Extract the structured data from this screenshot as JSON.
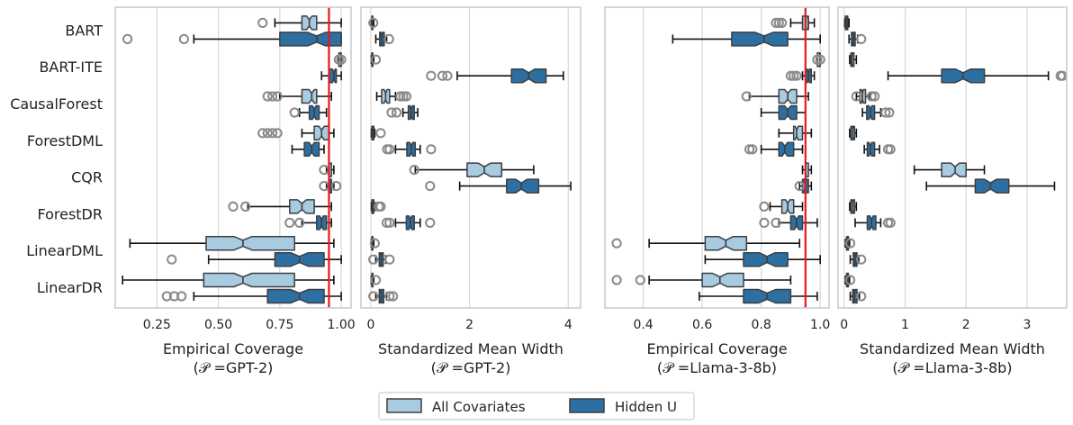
{
  "colors": {
    "all_covariates": "#a9cbe0",
    "hidden_u": "#2e6fa1",
    "box_edge": "#3a3f44",
    "target_line": "#e41a1c",
    "grid": "#d7d7d7",
    "panel_border": "#cccccc",
    "outlier_edge": "#8a8a8a"
  },
  "methods": [
    "BART",
    "BART-ITE",
    "CausalForest",
    "ForestDML",
    "CQR",
    "ForestDR",
    "LinearDML",
    "LinearDR"
  ],
  "legend": {
    "entries": [
      {
        "key": "all",
        "label": "All Covariates"
      },
      {
        "key": "hidden",
        "label": "Hidden U"
      }
    ]
  },
  "chart_data": [
    {
      "type": "boxplot",
      "xlabel_line1": "Empirical Coverage",
      "xlabel_line2": "(𝒫 =GPT-2)",
      "xlim": [
        0.08,
        1.04
      ],
      "xticks": [
        0.25,
        0.5,
        0.75,
        1.0
      ],
      "xtick_labels": [
        "0.25",
        "0.50",
        "0.75",
        "1.00"
      ],
      "target_line": 0.95,
      "series": [
        {
          "method": "BART",
          "group": "all",
          "whislo": 0.73,
          "q1": 0.84,
          "med": 0.87,
          "q3": 0.9,
          "whishi": 1.0,
          "fliers": [
            0.68
          ]
        },
        {
          "method": "BART",
          "group": "hidden",
          "whislo": 0.4,
          "q1": 0.75,
          "med": 0.9,
          "q3": 1.0,
          "whishi": 1.0,
          "fliers": [
            0.13,
            0.36
          ]
        },
        {
          "method": "BART-ITE",
          "group": "all",
          "whislo": 0.99,
          "q1": 0.99,
          "med": 1.0,
          "q3": 1.0,
          "whishi": 1.0,
          "fliers": [
            0.99,
            1.0
          ]
        },
        {
          "method": "BART-ITE",
          "group": "hidden",
          "whislo": 0.92,
          "q1": 0.95,
          "med": 0.97,
          "q3": 0.98,
          "whishi": 1.0,
          "fliers": []
        },
        {
          "method": "CausalForest",
          "group": "all",
          "whislo": 0.75,
          "q1": 0.84,
          "med": 0.88,
          "q3": 0.9,
          "whishi": 0.96,
          "fliers": [
            0.7,
            0.72,
            0.74
          ]
        },
        {
          "method": "CausalForest",
          "group": "hidden",
          "whislo": 0.83,
          "q1": 0.87,
          "med": 0.89,
          "q3": 0.91,
          "whishi": 0.94,
          "fliers": [
            0.81
          ]
        },
        {
          "method": "ForestDML",
          "group": "all",
          "whislo": 0.84,
          "q1": 0.89,
          "med": 0.92,
          "q3": 0.95,
          "whishi": 0.97,
          "fliers": [
            0.68,
            0.7,
            0.72,
            0.74
          ]
        },
        {
          "method": "ForestDML",
          "group": "hidden",
          "whislo": 0.8,
          "q1": 0.85,
          "med": 0.88,
          "q3": 0.91,
          "whishi": 0.93,
          "fliers": []
        },
        {
          "method": "CQR",
          "group": "all",
          "whislo": 0.94,
          "q1": 0.95,
          "med": 0.95,
          "q3": 0.96,
          "whishi": 0.97,
          "fliers": [
            0.93
          ]
        },
        {
          "method": "CQR",
          "group": "hidden",
          "whislo": 0.94,
          "q1": 0.95,
          "med": 0.96,
          "q3": 0.96,
          "whishi": 0.97,
          "fliers": [
            0.93,
            0.98
          ]
        },
        {
          "method": "ForestDR",
          "group": "all",
          "whislo": 0.62,
          "q1": 0.79,
          "med": 0.84,
          "q3": 0.89,
          "whishi": 0.96,
          "fliers": [
            0.56,
            0.61
          ]
        },
        {
          "method": "ForestDR",
          "group": "hidden",
          "whislo": 0.84,
          "q1": 0.9,
          "med": 0.92,
          "q3": 0.94,
          "whishi": 0.96,
          "fliers": [
            0.79,
            0.83
          ]
        },
        {
          "method": "LinearDML",
          "group": "all",
          "whislo": 0.14,
          "q1": 0.45,
          "med": 0.6,
          "q3": 0.81,
          "whishi": 0.97,
          "fliers": []
        },
        {
          "method": "LinearDML",
          "group": "hidden",
          "whislo": 0.46,
          "q1": 0.73,
          "med": 0.83,
          "q3": 0.93,
          "whishi": 1.0,
          "fliers": [
            0.31
          ]
        },
        {
          "method": "LinearDR",
          "group": "all",
          "whislo": 0.11,
          "q1": 0.44,
          "med": 0.6,
          "q3": 0.81,
          "whishi": 0.97,
          "fliers": []
        },
        {
          "method": "LinearDR",
          "group": "hidden",
          "whislo": 0.4,
          "q1": 0.7,
          "med": 0.83,
          "q3": 0.93,
          "whishi": 1.0,
          "fliers": [
            0.29,
            0.32,
            0.35
          ]
        }
      ]
    },
    {
      "type": "boxplot",
      "xlabel_line1": "Standardized Mean Width",
      "xlabel_line2": "(𝒫 =GPT-2)",
      "xlim": [
        -0.2,
        4.25
      ],
      "xticks": [
        0,
        2,
        4
      ],
      "xtick_labels": [
        "0",
        "2",
        "4"
      ],
      "series": [
        {
          "method": "BART",
          "group": "all",
          "whislo": 0.01,
          "q1": 0.02,
          "med": 0.03,
          "q3": 0.04,
          "whishi": 0.06,
          "fliers": [
            0.05
          ]
        },
        {
          "method": "BART",
          "group": "hidden",
          "whislo": 0.1,
          "q1": 0.18,
          "med": 0.22,
          "q3": 0.27,
          "whishi": 0.32,
          "fliers": [
            0.37
          ]
        },
        {
          "method": "BART-ITE",
          "group": "all",
          "whislo": 0.01,
          "q1": 0.02,
          "med": 0.03,
          "q3": 0.04,
          "whishi": 0.06,
          "fliers": [
            0.1
          ]
        },
        {
          "method": "BART-ITE",
          "group": "hidden",
          "whislo": 1.75,
          "q1": 2.85,
          "med": 3.2,
          "q3": 3.55,
          "whishi": 3.9,
          "fliers": [
            1.22,
            1.45,
            1.55
          ]
        },
        {
          "method": "CausalForest",
          "group": "all",
          "whislo": 0.12,
          "q1": 0.22,
          "med": 0.3,
          "q3": 0.38,
          "whishi": 0.5,
          "fliers": [
            0.6,
            0.66,
            0.72
          ]
        },
        {
          "method": "CausalForest",
          "group": "hidden",
          "whislo": 0.65,
          "q1": 0.76,
          "med": 0.82,
          "q3": 0.88,
          "whishi": 0.95,
          "fliers": [
            0.42,
            0.52
          ]
        },
        {
          "method": "ForestDML",
          "group": "all",
          "whislo": 0.01,
          "q1": 0.02,
          "med": 0.04,
          "q3": 0.06,
          "whishi": 0.08,
          "fliers": [
            0.2
          ]
        },
        {
          "method": "ForestDML",
          "group": "hidden",
          "whislo": 0.5,
          "q1": 0.73,
          "med": 0.82,
          "q3": 0.9,
          "whishi": 1.0,
          "fliers": [
            0.33,
            0.38,
            1.22
          ]
        },
        {
          "method": "CQR",
          "group": "all",
          "whislo": 0.9,
          "q1": 1.95,
          "med": 2.3,
          "q3": 2.65,
          "whishi": 3.3,
          "fliers": [
            0.88
          ]
        },
        {
          "method": "CQR",
          "group": "hidden",
          "whislo": 1.8,
          "q1": 2.75,
          "med": 3.05,
          "q3": 3.4,
          "whishi": 4.05,
          "fliers": [
            1.2
          ]
        },
        {
          "method": "ForestDR",
          "group": "all",
          "whislo": 0.01,
          "q1": 0.02,
          "med": 0.04,
          "q3": 0.06,
          "whishi": 0.09,
          "fliers": [
            0.16,
            0.2
          ]
        },
        {
          "method": "ForestDR",
          "group": "hidden",
          "whislo": 0.5,
          "q1": 0.72,
          "med": 0.8,
          "q3": 0.88,
          "whishi": 1.0,
          "fliers": [
            0.32,
            0.38,
            1.2
          ]
        },
        {
          "method": "LinearDML",
          "group": "all",
          "whislo": 0.01,
          "q1": 0.02,
          "med": 0.03,
          "q3": 0.04,
          "whishi": 0.06,
          "fliers": [
            0.08
          ]
        },
        {
          "method": "LinearDML",
          "group": "hidden",
          "whislo": 0.1,
          "q1": 0.17,
          "med": 0.21,
          "q3": 0.25,
          "whishi": 0.3,
          "fliers": [
            0.05,
            0.38
          ]
        },
        {
          "method": "LinearDR",
          "group": "all",
          "whislo": 0.01,
          "q1": 0.02,
          "med": 0.03,
          "q3": 0.04,
          "whishi": 0.06,
          "fliers": [
            0.1
          ]
        },
        {
          "method": "LinearDR",
          "group": "hidden",
          "whislo": 0.1,
          "q1": 0.17,
          "med": 0.21,
          "q3": 0.26,
          "whishi": 0.32,
          "fliers": [
            0.05,
            0.38,
            0.45
          ]
        }
      ]
    },
    {
      "type": "boxplot",
      "xlabel_line1": "Empirical Coverage",
      "xlabel_line2": "(𝒫 =Llama-3-8b)",
      "xlim": [
        0.27,
        1.03
      ],
      "xticks": [
        0.4,
        0.6,
        0.8,
        1.0
      ],
      "xtick_labels": [
        "0.4",
        "0.6",
        "0.8",
        "1.0"
      ],
      "target_line": 0.95,
      "series": [
        {
          "method": "BART",
          "group": "all",
          "whislo": 0.9,
          "q1": 0.94,
          "med": 0.96,
          "q3": 0.96,
          "whishi": 0.98,
          "fliers": [
            0.85,
            0.86,
            0.87
          ]
        },
        {
          "method": "BART",
          "group": "hidden",
          "whislo": 0.5,
          "q1": 0.7,
          "med": 0.81,
          "q3": 0.89,
          "whishi": 1.0,
          "fliers": []
        },
        {
          "method": "BART-ITE",
          "group": "all",
          "whislo": 0.99,
          "q1": 0.99,
          "med": 1.0,
          "q3": 1.0,
          "whishi": 1.0,
          "fliers": [
            0.99,
            1.0
          ]
        },
        {
          "method": "BART-ITE",
          "group": "hidden",
          "whislo": 0.94,
          "q1": 0.95,
          "med": 0.96,
          "q3": 0.97,
          "whishi": 0.98,
          "fliers": [
            0.9,
            0.91,
            0.92
          ]
        },
        {
          "method": "CausalForest",
          "group": "all",
          "whislo": 0.76,
          "q1": 0.86,
          "med": 0.89,
          "q3": 0.92,
          "whishi": 0.96,
          "fliers": [
            0.75
          ]
        },
        {
          "method": "CausalForest",
          "group": "hidden",
          "whislo": 0.8,
          "q1": 0.86,
          "med": 0.89,
          "q3": 0.92,
          "whishi": 0.95,
          "fliers": []
        },
        {
          "method": "ForestDML",
          "group": "all",
          "whislo": 0.86,
          "q1": 0.91,
          "med": 0.92,
          "q3": 0.94,
          "whishi": 0.97,
          "fliers": []
        },
        {
          "method": "ForestDML",
          "group": "hidden",
          "whislo": 0.8,
          "q1": 0.86,
          "med": 0.88,
          "q3": 0.91,
          "whishi": 0.94,
          "fliers": [
            0.76,
            0.77
          ]
        },
        {
          "method": "CQR",
          "group": "all",
          "whislo": 0.94,
          "q1": 0.95,
          "med": 0.95,
          "q3": 0.96,
          "whishi": 0.97,
          "fliers": []
        },
        {
          "method": "CQR",
          "group": "hidden",
          "whislo": 0.93,
          "q1": 0.94,
          "med": 0.95,
          "q3": 0.96,
          "whishi": 0.97,
          "fliers": [
            0.93
          ]
        },
        {
          "method": "ForestDR",
          "group": "all",
          "whislo": 0.83,
          "q1": 0.87,
          "med": 0.89,
          "q3": 0.91,
          "whishi": 0.94,
          "fliers": [
            0.81
          ]
        },
        {
          "method": "ForestDR",
          "group": "hidden",
          "whislo": 0.86,
          "q1": 0.9,
          "med": 0.92,
          "q3": 0.94,
          "whishi": 0.99,
          "fliers": [
            0.81,
            0.85
          ]
        },
        {
          "method": "LinearDML",
          "group": "all",
          "whislo": 0.42,
          "q1": 0.61,
          "med": 0.68,
          "q3": 0.75,
          "whishi": 0.93,
          "fliers": [
            0.31
          ]
        },
        {
          "method": "LinearDML",
          "group": "hidden",
          "whislo": 0.61,
          "q1": 0.74,
          "med": 0.82,
          "q3": 0.89,
          "whishi": 1.0,
          "fliers": []
        },
        {
          "method": "LinearDR",
          "group": "all",
          "whislo": 0.42,
          "q1": 0.6,
          "med": 0.66,
          "q3": 0.74,
          "whishi": 0.9,
          "fliers": [
            0.31,
            0.39
          ]
        },
        {
          "method": "LinearDR",
          "group": "hidden",
          "whislo": 0.59,
          "q1": 0.74,
          "med": 0.82,
          "q3": 0.9,
          "whishi": 0.99,
          "fliers": []
        }
      ]
    },
    {
      "type": "boxplot",
      "xlabel_line1": "Standardized Mean Width",
      "xlabel_line2": "(𝒫 =Llama-3-8b)",
      "xlim": [
        -0.1,
        3.65
      ],
      "xticks": [
        0,
        1,
        2,
        3
      ],
      "xtick_labels": [
        "0",
        "1",
        "2",
        "3"
      ],
      "series": [
        {
          "method": "BART",
          "group": "all",
          "whislo": 0.01,
          "q1": 0.02,
          "med": 0.04,
          "q3": 0.06,
          "whishi": 0.08,
          "fliers": []
        },
        {
          "method": "BART",
          "group": "hidden",
          "whislo": 0.08,
          "q1": 0.12,
          "med": 0.15,
          "q3": 0.18,
          "whishi": 0.22,
          "fliers": [
            0.28
          ]
        },
        {
          "method": "BART-ITE",
          "group": "all",
          "whislo": 0.09,
          "q1": 0.11,
          "med": 0.13,
          "q3": 0.16,
          "whishi": 0.2,
          "fliers": []
        },
        {
          "method": "BART-ITE",
          "group": "hidden",
          "whislo": 0.72,
          "q1": 1.6,
          "med": 1.95,
          "q3": 2.3,
          "whishi": 3.35,
          "fliers": [
            3.55,
            3.58
          ]
        },
        {
          "method": "CausalForest",
          "group": "all",
          "whislo": 0.2,
          "q1": 0.26,
          "med": 0.3,
          "q3": 0.35,
          "whishi": 0.42,
          "fliers": [
            0.2,
            0.45,
            0.5
          ]
        },
        {
          "method": "CausalForest",
          "group": "hidden",
          "whislo": 0.3,
          "q1": 0.37,
          "med": 0.43,
          "q3": 0.5,
          "whishi": 0.6,
          "fliers": [
            0.68,
            0.74
          ]
        },
        {
          "method": "ForestDML",
          "group": "all",
          "whislo": 0.09,
          "q1": 0.11,
          "med": 0.14,
          "q3": 0.17,
          "whishi": 0.2,
          "fliers": []
        },
        {
          "method": "ForestDML",
          "group": "hidden",
          "whislo": 0.33,
          "q1": 0.38,
          "med": 0.43,
          "q3": 0.5,
          "whishi": 0.58,
          "fliers": [
            0.72,
            0.76
          ]
        },
        {
          "method": "CQR",
          "group": "all",
          "whislo": 1.15,
          "q1": 1.6,
          "med": 1.82,
          "q3": 2.0,
          "whishi": 2.3,
          "fliers": []
        },
        {
          "method": "CQR",
          "group": "hidden",
          "whislo": 1.35,
          "q1": 2.15,
          "med": 2.4,
          "q3": 2.7,
          "whishi": 3.45,
          "fliers": []
        },
        {
          "method": "ForestDR",
          "group": "all",
          "whislo": 0.09,
          "q1": 0.11,
          "med": 0.14,
          "q3": 0.17,
          "whishi": 0.2,
          "fliers": []
        },
        {
          "method": "ForestDR",
          "group": "hidden",
          "whislo": 0.18,
          "q1": 0.38,
          "med": 0.45,
          "q3": 0.52,
          "whishi": 0.6,
          "fliers": [
            0.72,
            0.76
          ]
        },
        {
          "method": "LinearDML",
          "group": "all",
          "whislo": 0.02,
          "q1": 0.04,
          "med": 0.05,
          "q3": 0.07,
          "whishi": 0.09,
          "fliers": [
            0.1
          ]
        },
        {
          "method": "LinearDML",
          "group": "hidden",
          "whislo": 0.1,
          "q1": 0.15,
          "med": 0.18,
          "q3": 0.21,
          "whishi": 0.24,
          "fliers": [
            0.28
          ]
        },
        {
          "method": "LinearDR",
          "group": "all",
          "whislo": 0.02,
          "q1": 0.04,
          "med": 0.05,
          "q3": 0.07,
          "whishi": 0.09,
          "fliers": [
            0.1
          ]
        },
        {
          "method": "LinearDR",
          "group": "hidden",
          "whislo": 0.1,
          "q1": 0.14,
          "med": 0.17,
          "q3": 0.21,
          "whishi": 0.25,
          "fliers": [
            0.28
          ]
        }
      ]
    }
  ]
}
